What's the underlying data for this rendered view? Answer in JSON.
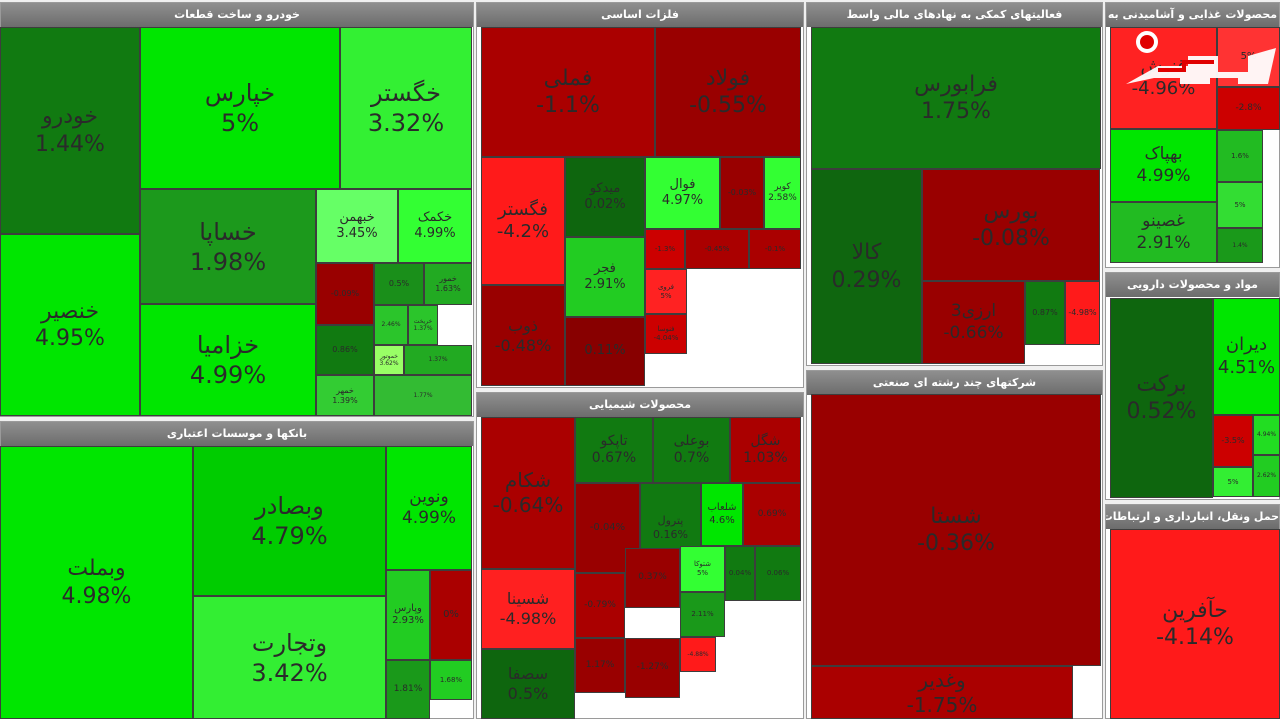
{
  "chart_data": {
    "type": "heatmap",
    "panels": [
      {
        "title": "خودرو و ساخت قطعات",
        "tiles": [
          {
            "name": "خودرو",
            "value": "1.44%"
          },
          {
            "name": "خپارس",
            "value": "5%"
          },
          {
            "name": "خگستر",
            "value": "3.32%"
          },
          {
            "name": "خنصیر",
            "value": "4.95%"
          },
          {
            "name": "خساپا",
            "value": "1.98%"
          },
          {
            "name": "خبهمن",
            "value": "3.45%"
          },
          {
            "name": "خکمک",
            "value": "4.99%"
          },
          {
            "name": "خزامیا",
            "value": "4.99%"
          },
          {
            "name": "",
            "value": "-0.09%"
          },
          {
            "name": "",
            "value": "0.5%"
          },
          {
            "name": "خمور",
            "value": "1.63%"
          },
          {
            "name": "",
            "value": "0.86%"
          },
          {
            "name": "",
            "value": "2.46%"
          },
          {
            "name": "خریخت",
            "value": "1.37%"
          },
          {
            "name": "خموتور",
            "value": "3.62%"
          },
          {
            "name": "",
            "value": "1.37%"
          },
          {
            "name": "خمهر",
            "value": "1.39%"
          },
          {
            "name": "",
            "value": "1.77%"
          }
        ]
      },
      {
        "title": "فلزات اساسی",
        "tiles": [
          {
            "name": "فملی",
            "value": "-1.1%"
          },
          {
            "name": "فولاد",
            "value": "-0.55%"
          },
          {
            "name": "فگستر",
            "value": "-4.2%"
          },
          {
            "name": "میدکو",
            "value": "0.02%"
          },
          {
            "name": "فوال",
            "value": "4.97%"
          },
          {
            "name": "",
            "value": "-0.03%"
          },
          {
            "name": "کویر",
            "value": "2.58%"
          },
          {
            "name": "فجر",
            "value": "2.91%"
          },
          {
            "name": "",
            "value": "-1.3%"
          },
          {
            "name": "",
            "value": "-0.45%"
          },
          {
            "name": "",
            "value": "-0.1%"
          },
          {
            "name": "فروی",
            "value": "5%"
          },
          {
            "name": "ذوب",
            "value": "-0.48%"
          },
          {
            "name": "",
            "value": "0.11%"
          },
          {
            "name": "فنوسا",
            "value": "-4.04%"
          }
        ]
      },
      {
        "title": "فعالیتهای کمکی به نهادهای مالی واسط",
        "tiles": [
          {
            "name": "فرابورس",
            "value": "1.75%"
          },
          {
            "name": "کالا",
            "value": "0.29%"
          },
          {
            "name": "بورس",
            "value": "-0.08%"
          },
          {
            "name": "ارزی3",
            "value": "-0.66%"
          },
          {
            "name": "",
            "value": "0.87%"
          },
          {
            "name": "",
            "value": "-4.98%"
          }
        ]
      },
      {
        "title": "محصولات غذایی و آشامیدنی به",
        "tiles": [
          {
            "name": "غنوش",
            "value": "-4.96%"
          },
          {
            "name": "",
            "value": "5%"
          },
          {
            "name": "",
            "value": "-2.8%"
          },
          {
            "name": "بهپاک",
            "value": "4.99%"
          },
          {
            "name": "",
            "value": "1.6%"
          },
          {
            "name": "",
            "value": "5%"
          },
          {
            "name": "غصینو",
            "value": "2.91%"
          },
          {
            "name": "",
            "value": "1.4%"
          }
        ]
      },
      {
        "title": "بانکها و موسسات اعتباری",
        "tiles": [
          {
            "name": "وبملت",
            "value": "4.98%"
          },
          {
            "name": "وبصادر",
            "value": "4.79%"
          },
          {
            "name": "ونوین",
            "value": "4.99%"
          },
          {
            "name": "وتجارت",
            "value": "3.42%"
          },
          {
            "name": "وپارس",
            "value": "2.93%"
          },
          {
            "name": "",
            "value": "0%"
          },
          {
            "name": "",
            "value": "1.68%"
          },
          {
            "name": "",
            "value": "1.81%"
          }
        ]
      },
      {
        "title": "محصولات شیمیایی",
        "tiles": [
          {
            "name": "شکام",
            "value": "-0.64%"
          },
          {
            "name": "تاپکو",
            "value": "0.67%"
          },
          {
            "name": "بوعلی",
            "value": "0.7%"
          },
          {
            "name": "شگل",
            "value": "1.03%"
          },
          {
            "name": "",
            "value": "-0.04%"
          },
          {
            "name": "پترول",
            "value": "0.16%"
          },
          {
            "name": "شلعاب",
            "value": "4.6%"
          },
          {
            "name": "",
            "value": "0.69%"
          },
          {
            "name": "شسینا",
            "value": "-4.98%"
          },
          {
            "name": "",
            "value": "-0.79%"
          },
          {
            "name": "",
            "value": "0.37%"
          },
          {
            "name": "شتوکا",
            "value": "5%"
          },
          {
            "name": "",
            "value": "0.04%"
          },
          {
            "name": "",
            "value": "0.06%"
          },
          {
            "name": "",
            "value": "2.11%"
          },
          {
            "name": "",
            "value": "1.17%"
          },
          {
            "name": "",
            "value": "-1.27%"
          },
          {
            "name": "",
            "value": "-4.88%"
          },
          {
            "name": "سصفا",
            "value": "0.5%"
          }
        ]
      },
      {
        "title": "شرکتهای چند رشته ای صنعتی",
        "tiles": [
          {
            "name": "شستا",
            "value": "-0.36%"
          },
          {
            "name": "وغدیر",
            "value": "-1.75%"
          }
        ]
      },
      {
        "title": "مواد و محصولات دارویی",
        "tiles": [
          {
            "name": "برکت",
            "value": "0.52%"
          },
          {
            "name": "دیران",
            "value": "4.51%"
          },
          {
            "name": "",
            "value": "-3.5%"
          },
          {
            "name": "",
            "value": "4.94%"
          },
          {
            "name": "",
            "value": "2.62%"
          },
          {
            "name": "",
            "value": "5%"
          }
        ]
      },
      {
        "title": "حمل ونقل، انبارداری و ارتباطات",
        "tiles": [
          {
            "name": "حآفرین",
            "value": "-4.14%"
          }
        ]
      }
    ]
  },
  "logo": {
    "alt": "rokna-logo"
  },
  "colors": {
    "gain_strong": "#00e600",
    "gain_mid": "#1db31d",
    "gain_dark": "#117a11",
    "loss_dark": "#9a0000",
    "loss_mid": "#c00000",
    "loss_strong": "#ff1a1a"
  }
}
